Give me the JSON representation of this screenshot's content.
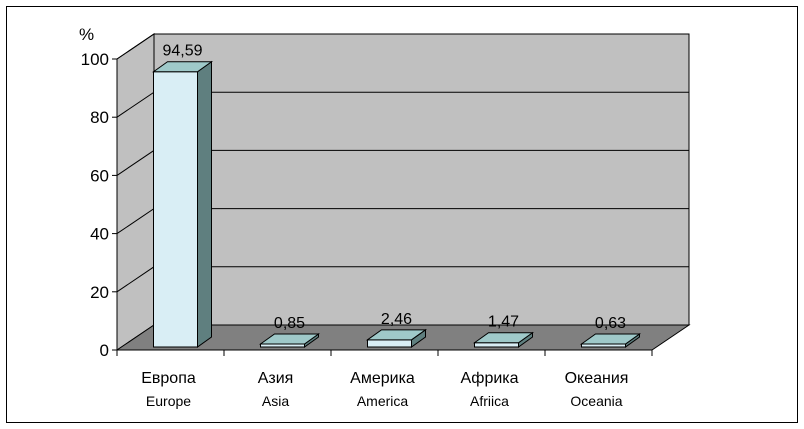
{
  "chart_data": {
    "type": "bar",
    "style": "3d-column",
    "ylabel": "%",
    "ylim": [
      0,
      100
    ],
    "yticks": [
      "0",
      "20",
      "40",
      "60",
      "80",
      "100"
    ],
    "grid": true,
    "legend": "none",
    "categories": [
      {
        "ru": "Европа",
        "en": "Europe"
      },
      {
        "ru": "Азия",
        "en": "Asia"
      },
      {
        "ru": "Америка",
        "en": "America"
      },
      {
        "ru": "Африка",
        "en": "Afriica"
      },
      {
        "ru": "Океания",
        "en": "Oceania"
      }
    ],
    "values": [
      94.59,
      0.85,
      2.46,
      1.47,
      0.63
    ],
    "data_labels": [
      "94,59",
      "0,85",
      "2,46",
      "1,47",
      "0,63"
    ],
    "colors": {
      "wall": "#c0c0c0",
      "floor": "#808080",
      "bar_front": "#d9eef5",
      "bar_side": "#5f7f7f",
      "bar_top": "#9fc9c9"
    }
  }
}
